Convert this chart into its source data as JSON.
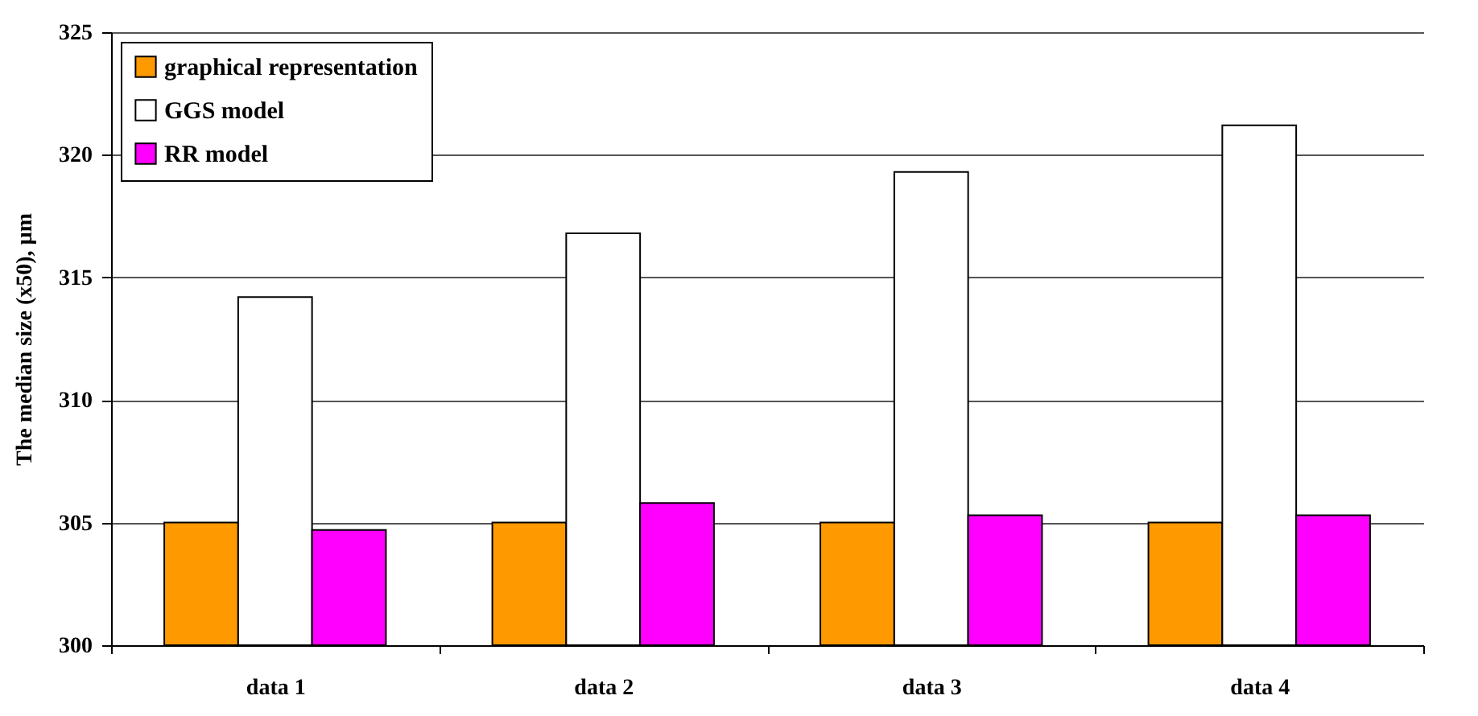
{
  "chart_data": {
    "type": "bar",
    "ylabel": "The median size (x50), µm",
    "categories": [
      "data 1",
      "data 2",
      "data 3",
      "data 4"
    ],
    "series": [
      {
        "name": "graphical representation",
        "color": "#ff9900",
        "values": [
          305,
          305,
          305,
          305
        ]
      },
      {
        "name": "GGS model",
        "color": "#ffffff",
        "values": [
          314.2,
          316.8,
          319.3,
          321.2
        ]
      },
      {
        "name": "RR model",
        "color": "#ff00ff",
        "values": [
          304.7,
          305.8,
          305.3,
          305.3
        ]
      }
    ],
    "ylim": [
      300,
      325
    ],
    "yticks": [
      300,
      305,
      310,
      315,
      320,
      325
    ],
    "grid": "y",
    "legend": "top left"
  }
}
